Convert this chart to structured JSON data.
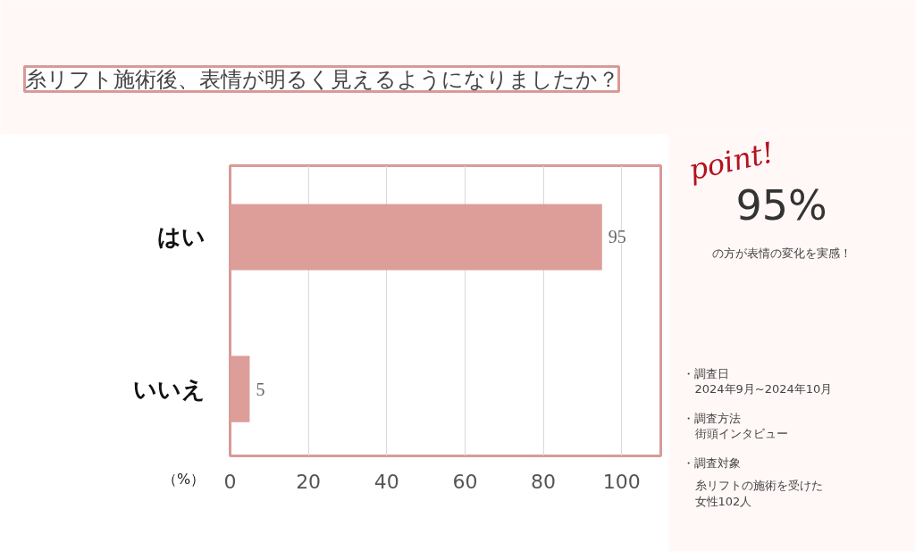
{
  "chart_data": {
    "type": "bar",
    "orientation": "horizontal",
    "title": "糸リフト施術後、表情が明るく見えるようになりましたか？",
    "xlabel": "（%）",
    "categories": [
      "はい",
      "いいえ"
    ],
    "values": [
      95,
      5
    ],
    "color": "#dd9d99",
    "xlim": [
      0,
      110
    ],
    "xticks": [
      0,
      20,
      40,
      60,
      80,
      100
    ],
    "grid": "x",
    "data_labels": true,
    "annotations": [
      "point!",
      "95%",
      "の方が表情の変化を実感！",
      "・調査日",
      "2024年9月~2024年10月",
      "・調査方法",
      "街頭インタビュー",
      "・調査対象",
      "糸リフトの施術を受けた女性102人"
    ]
  }
}
